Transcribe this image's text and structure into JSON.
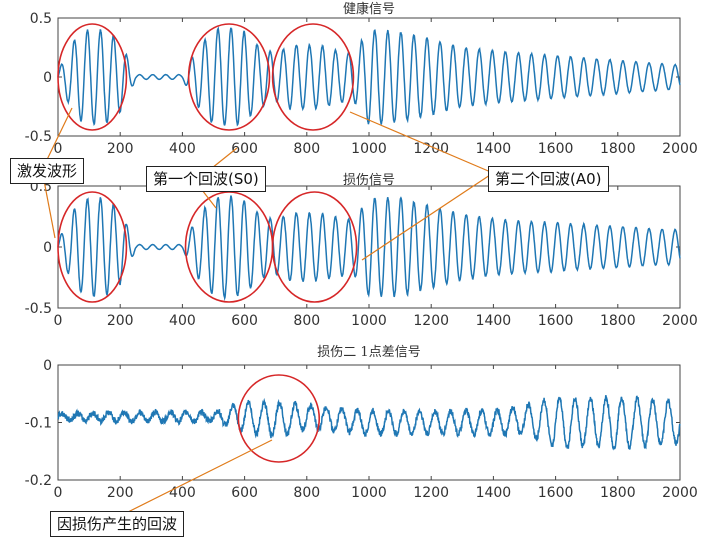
{
  "colors": {
    "signal": "#1f77b4",
    "ellipse": "#d62728",
    "leader": "#e07b1a",
    "axis": "#444444"
  },
  "chart_data": [
    {
      "type": "line",
      "title": "健康信号",
      "xlim": [
        0,
        2000
      ],
      "ylim": [
        -0.5,
        0.5
      ],
      "xticks": [
        "0",
        "200",
        "400",
        "600",
        "800",
        "1000",
        "1200",
        "1400",
        "1600",
        "1800",
        "2000"
      ],
      "yticks": [
        "0.5",
        "0",
        "-0.5"
      ],
      "series": [
        {
          "x": [
            0,
            60,
            100,
            150,
            200,
            250,
            300,
            400,
            450,
            500,
            550,
            600,
            650,
            700,
            750,
            800,
            850,
            900,
            950,
            1000,
            1100,
            1200,
            1300,
            1400,
            1500,
            1600,
            1700,
            1800,
            1900,
            2000
          ],
          "envelope": [
            0.05,
            0.35,
            0.4,
            0.4,
            0.3,
            0.02,
            0.02,
            0.02,
            0.25,
            0.4,
            0.42,
            0.38,
            0.25,
            0.2,
            0.27,
            0.27,
            0.26,
            0.22,
            0.2,
            0.4,
            0.38,
            0.32,
            0.25,
            0.22,
            0.2,
            0.18,
            0.16,
            0.14,
            0.12,
            0.1
          ]
        }
      ],
      "annotations": [
        {
          "label": "excitation",
          "x_range": [
            0,
            220
          ]
        },
        {
          "label": "S0",
          "x_range": [
            420,
            680
          ]
        },
        {
          "label": "A0",
          "x_range": [
            690,
            950
          ]
        }
      ]
    },
    {
      "type": "line",
      "title": "损伤信号",
      "xlim": [
        0,
        2000
      ],
      "ylim": [
        -0.5,
        0.5
      ],
      "xticks": [
        "0",
        "200",
        "400",
        "600",
        "800",
        "1000",
        "1200",
        "1400",
        "1600",
        "1800",
        "2000"
      ],
      "yticks": [
        "0.5",
        "0",
        "-0.5"
      ],
      "series": [
        {
          "x": [
            0,
            60,
            100,
            150,
            200,
            250,
            300,
            400,
            450,
            500,
            550,
            600,
            650,
            700,
            750,
            800,
            850,
            900,
            950,
            1000,
            1100,
            1200,
            1300,
            1400,
            1500,
            1600,
            1700,
            1800,
            1900,
            2000
          ],
          "envelope": [
            0.05,
            0.35,
            0.4,
            0.4,
            0.3,
            0.02,
            0.02,
            0.02,
            0.25,
            0.4,
            0.42,
            0.38,
            0.26,
            0.22,
            0.28,
            0.28,
            0.27,
            0.24,
            0.22,
            0.4,
            0.4,
            0.33,
            0.27,
            0.23,
            0.21,
            0.2,
            0.18,
            0.17,
            0.15,
            0.14
          ]
        }
      ],
      "annotations": [
        {
          "label": "excitation",
          "x_range": [
            0,
            220
          ]
        },
        {
          "label": "S0",
          "x_range": [
            410,
            690
          ]
        },
        {
          "label": "A0",
          "x_range": [
            690,
            960
          ]
        }
      ]
    },
    {
      "type": "line",
      "title": "损伤二 1点差信号",
      "xlim": [
        0,
        2000
      ],
      "ylim": [
        -0.2,
        0.0
      ],
      "xticks": [
        "0",
        "200",
        "400",
        "600",
        "800",
        "1000",
        "1200",
        "1400",
        "1600",
        "1800",
        "2000"
      ],
      "yticks": [
        "0",
        "-0.1",
        "-0.2"
      ],
      "series": [
        {
          "x": [
            0,
            200,
            400,
            500,
            600,
            700,
            800,
            900,
            1000,
            1200,
            1400,
            1500,
            1600,
            1700,
            1800,
            1900,
            2000
          ],
          "baseline": [
            -0.09,
            -0.09,
            -0.09,
            -0.09,
            -0.09,
            -0.095,
            -0.09,
            -0.095,
            -0.1,
            -0.1,
            -0.1,
            -0.095,
            -0.1,
            -0.1,
            -0.1,
            -0.1,
            -0.1
          ],
          "amplitude": [
            0.005,
            0.008,
            0.008,
            0.008,
            0.025,
            0.03,
            0.02,
            0.02,
            0.02,
            0.02,
            0.02,
            0.025,
            0.045,
            0.04,
            0.045,
            0.04,
            0.035
          ]
        }
      ],
      "annotations": [
        {
          "label": "damage_echo",
          "x_range": [
            580,
            840
          ]
        }
      ]
    }
  ],
  "callouts": {
    "excitation": "激发波形",
    "s0": "第一个回波(S0)",
    "a0": "第二个回波(A0)",
    "damage": "因损伤产生的回波"
  }
}
